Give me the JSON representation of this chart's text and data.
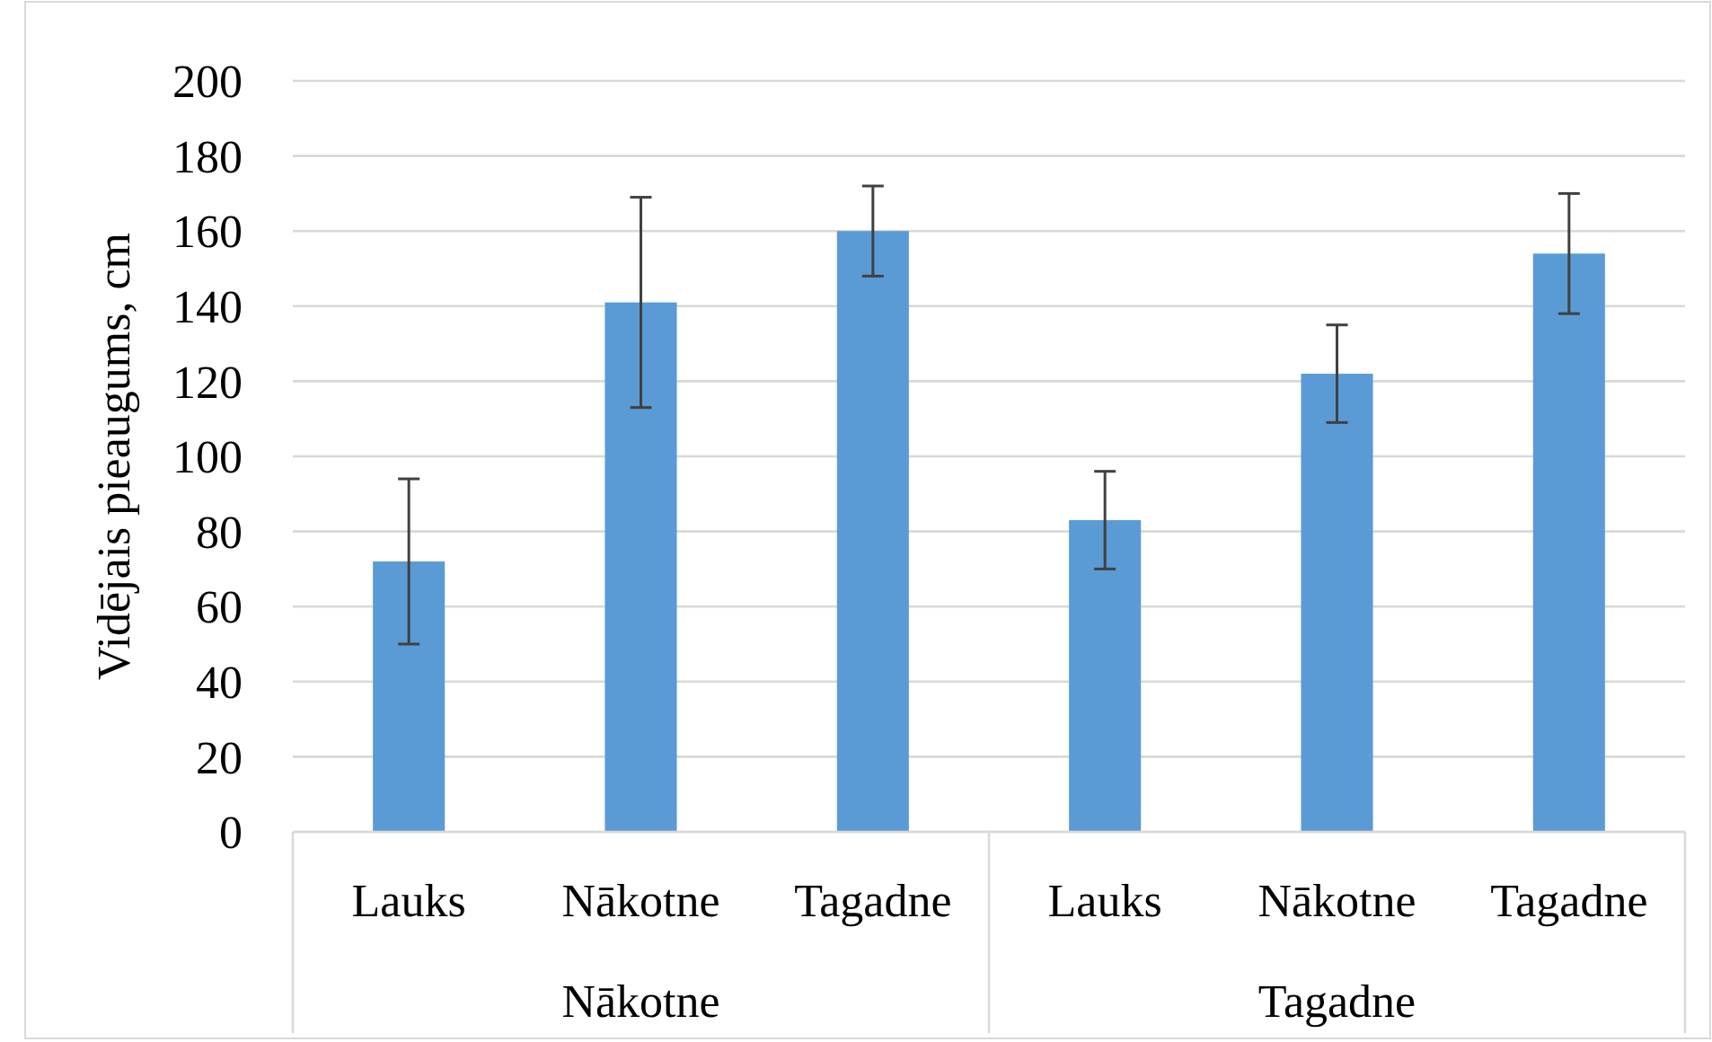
{
  "chart_data": {
    "type": "bar",
    "ylabel": "Vidējais pieaugums, cm",
    "categories": [
      "Lauks",
      "Nākotne",
      "Tagadne",
      "Lauks",
      "Nākotne",
      "Tagadne"
    ],
    "values": [
      72,
      141,
      160,
      83,
      122,
      154
    ],
    "errors": [
      22,
      28,
      12,
      13,
      13,
      16
    ],
    "color": "#5b9bd5",
    "ylim": [
      0,
      200
    ],
    "yticks": [
      0,
      20,
      40,
      60,
      80,
      100,
      120,
      140,
      160,
      180,
      200
    ],
    "grid": "y",
    "annotations": [
      "Nākotne",
      "Tagadne"
    ]
  }
}
